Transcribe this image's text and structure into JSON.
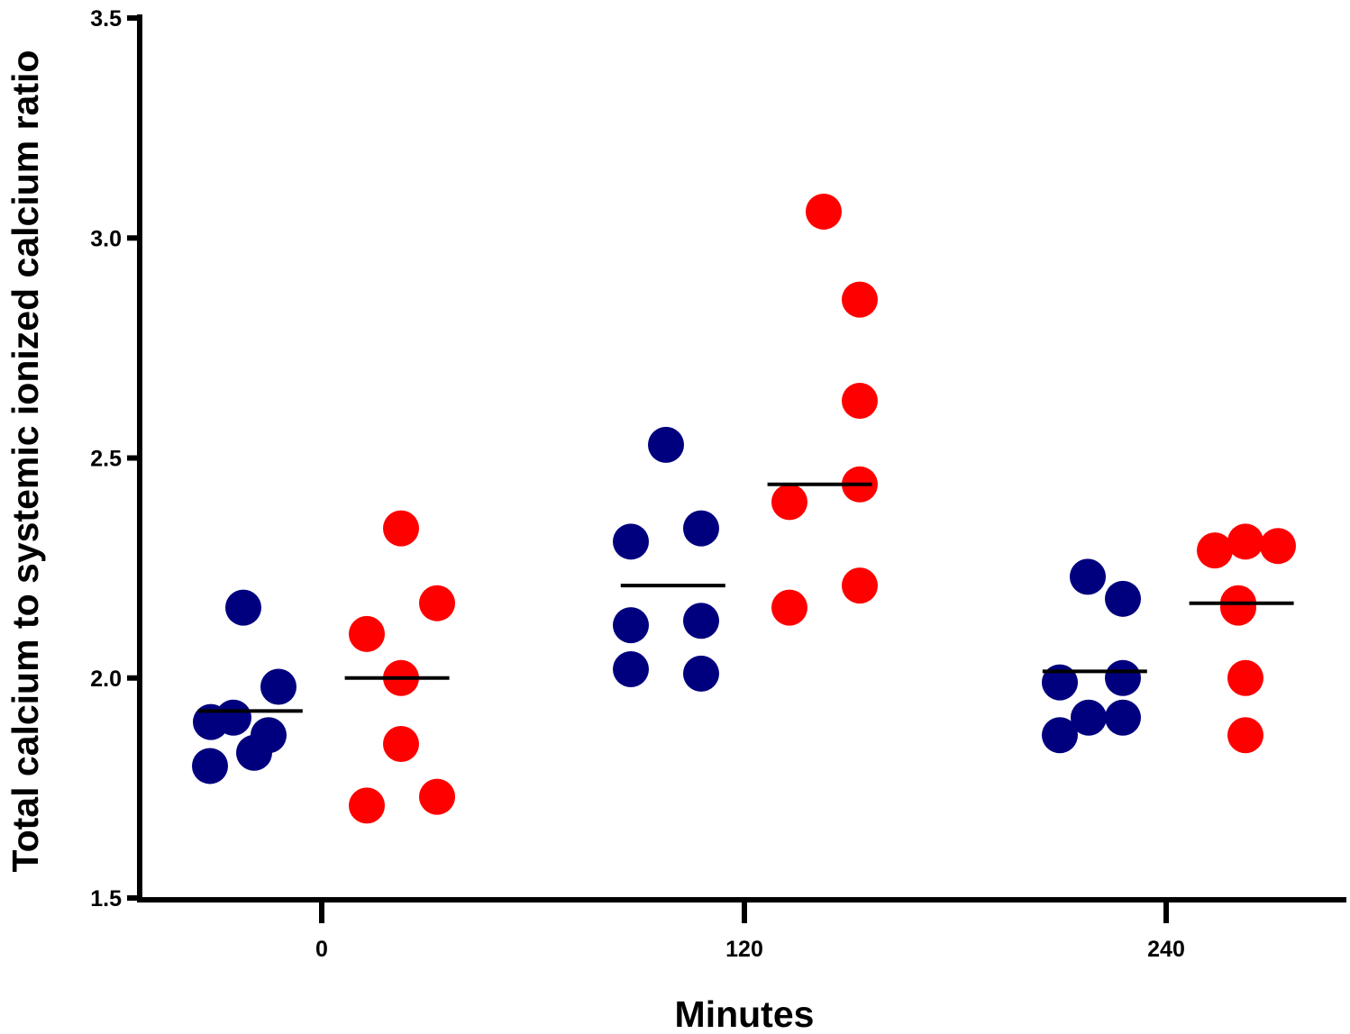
{
  "chart_data": {
    "type": "scatter",
    "xlabel": "Minutes",
    "ylabel": "Total calcium to systemic ionized calcium ratio",
    "ylim": [
      1.5,
      3.5
    ],
    "yticks": [
      "1.5",
      "2.0",
      "2.5",
      "3.0",
      "3.5"
    ],
    "categories": [
      "0",
      "120",
      "240"
    ],
    "grid": false,
    "legend": "none",
    "series": [
      {
        "color": "#00007f",
        "points": [
          {
            "category": "0",
            "values": [
              2.16,
              1.98,
              1.91,
              1.9,
              1.87,
              1.83,
              1.8
            ],
            "median": 1.925
          },
          {
            "category": "120",
            "values": [
              2.53,
              2.34,
              2.31,
              2.13,
              2.12,
              2.02,
              2.01
            ],
            "median": 2.21
          },
          {
            "category": "240",
            "values": [
              2.23,
              2.18,
              2.0,
              1.99,
              1.91,
              1.91,
              1.87
            ],
            "median": 2.015
          }
        ]
      },
      {
        "color": "#ff0000",
        "points": [
          {
            "category": "0",
            "values": [
              2.34,
              2.17,
              2.1,
              2.0,
              1.85,
              1.73,
              1.71
            ],
            "median": 2.0
          },
          {
            "category": "120",
            "values": [
              3.06,
              2.86,
              2.63,
              2.44,
              2.4,
              2.21,
              2.16
            ],
            "median": 2.44
          },
          {
            "category": "240",
            "values": [
              2.31,
              2.3,
              2.29,
              2.17,
              2.16,
              2.0,
              1.87
            ],
            "median": 2.17
          }
        ]
      }
    ]
  }
}
